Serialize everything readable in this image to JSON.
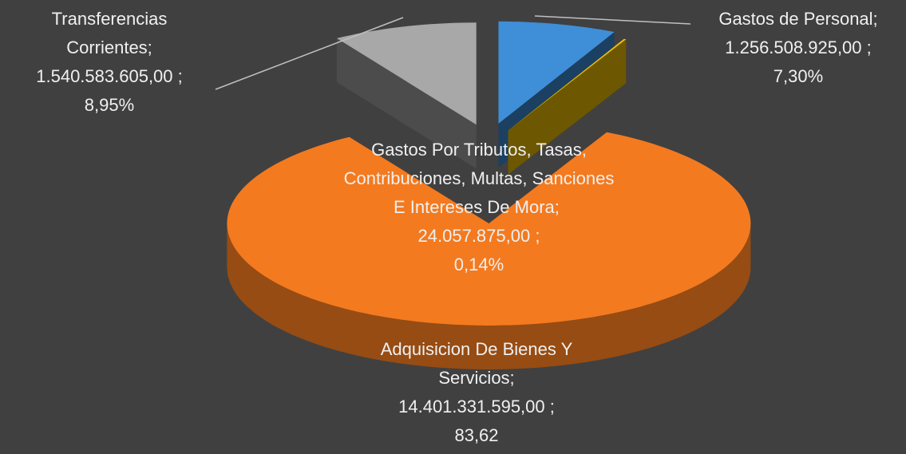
{
  "chart_data": {
    "type": "pie",
    "categories": [
      "Gastos de Personal;",
      "Gastos Por Tributos, Tasas, Contribuciones, Multas, Sanciones E Intereses De Mora;",
      "Adquisicion De Bienes Y Servicios;",
      "Transferencias Corrientes;"
    ],
    "values": [
      1256508925,
      24057875,
      14401331595,
      1540583605
    ],
    "value_labels": [
      "1.256.508.925,00 ;",
      "24.057.875,00 ;",
      "14.401.331.595,00 ;",
      "1.540.583.605,00 ;"
    ],
    "percents": [
      7.3,
      0.14,
      83.62,
      8.95
    ],
    "percent_labels": [
      "7,30%",
      "0,14%",
      "83,62",
      "8,95%"
    ],
    "colors": [
      "#3f8ed8",
      "#f2c100",
      "#f47a1f",
      "#a8a8a8"
    ]
  }
}
